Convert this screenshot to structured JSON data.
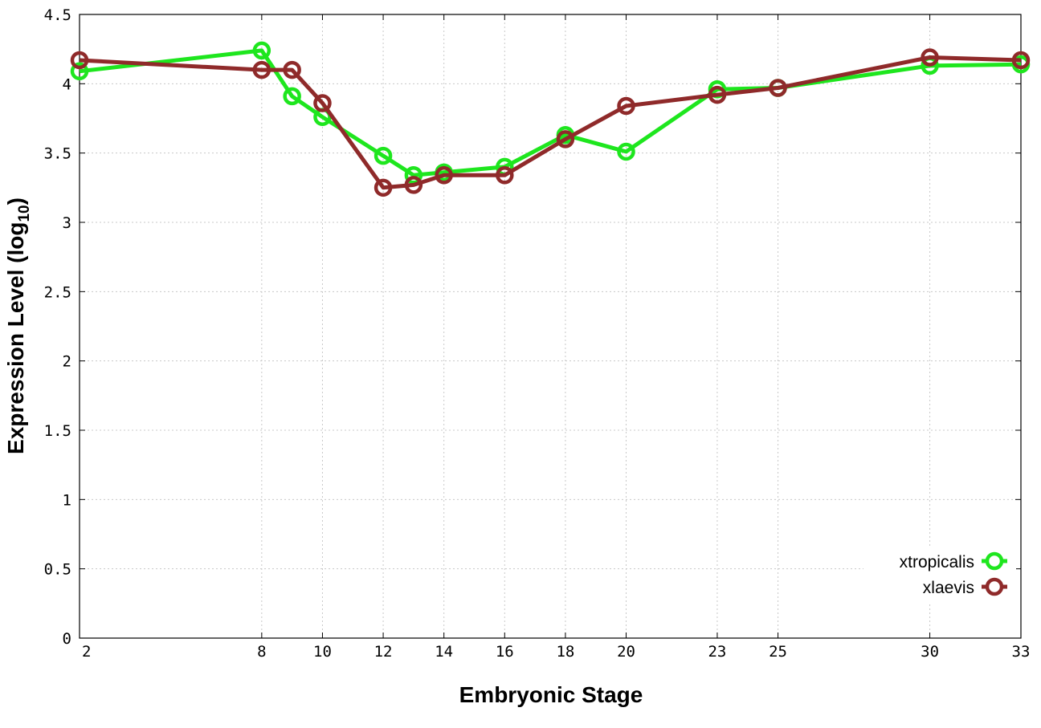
{
  "chart_data": {
    "type": "line",
    "title": "",
    "xlabel": "Embryonic Stage",
    "ylabel_main": "Expression Level (log",
    "ylabel_sub": "10",
    "ylabel_end": ")",
    "xlim": [
      2,
      33
    ],
    "ylim": [
      0,
      4.5
    ],
    "x_ticks": [
      2,
      8,
      10,
      12,
      14,
      16,
      18,
      20,
      23,
      25,
      30,
      33
    ],
    "y_ticks": [
      "0",
      "0.5",
      "1",
      "1.5",
      "2",
      "2.5",
      "3",
      "3.5",
      "4",
      "4.5"
    ],
    "grid": true,
    "legend_position": "bottom-right",
    "x": [
      2,
      8,
      9,
      10,
      12,
      13,
      14,
      16,
      18,
      20,
      23,
      25,
      30,
      33
    ],
    "series": [
      {
        "name": "xtropicalis",
        "color": "#1ee61e",
        "values": [
          4.09,
          4.24,
          3.91,
          3.76,
          3.48,
          3.34,
          3.36,
          3.4,
          3.63,
          3.51,
          3.96,
          3.97,
          4.13,
          4.14
        ]
      },
      {
        "name": "xlaevis",
        "color": "#8f2a2a",
        "values": [
          4.17,
          4.1,
          4.1,
          3.86,
          3.25,
          3.27,
          3.34,
          3.34,
          3.6,
          3.84,
          3.92,
          3.97,
          4.19,
          4.17
        ]
      }
    ]
  }
}
